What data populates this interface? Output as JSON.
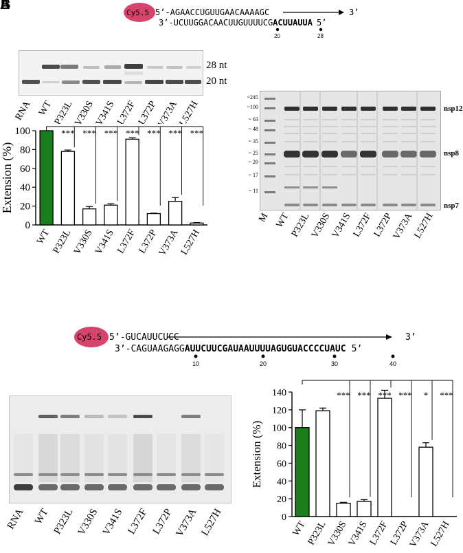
{
  "panel_letters": [
    "A",
    "B"
  ],
  "seq_top": {
    "dye": "Cy5.5",
    "primer": "5’-AGAACCUGUUGAACAAAAGC",
    "primer_end": "3’",
    "template_plain": "3’-UCUUGGACAACUUGUUUUCG",
    "template_bold": "ACUUAUUA",
    "template_end": "5’",
    "markers": [
      "20",
      "28"
    ]
  },
  "seq_bottom": {
    "dye": "Cy5.5",
    "primer": "5’-GUCAUUCUCC",
    "primer_end": "3’",
    "template_plain": "3’-CAGUAAGAGG",
    "template_bold": "AUUCUUCGAUAAUUUUAGUGUACCCCUAUC",
    "template_end": "5’",
    "markers": [
      "10",
      "20",
      "30",
      "40"
    ]
  },
  "gel_top": {
    "lanes": [
      "RNA",
      "WT",
      "P323L",
      "V330S",
      "V341S",
      "L372F",
      "L372P",
      "V373A",
      "L527H"
    ],
    "band_labels": [
      "28 nt",
      "20 nt"
    ]
  },
  "sds_gel": {
    "lanes": [
      "M",
      "WT",
      "P323L",
      "V330S",
      "V341S",
      "L372F",
      "L372P",
      "V373A",
      "L527H"
    ],
    "markers": [
      "~245",
      "~100",
      "~ 63",
      "~ 48",
      "~ 35",
      "~ 25",
      "~ 20",
      "~ 17",
      "~ 11"
    ],
    "protein_labels": [
      "nsp12",
      "nsp8",
      "nsp7"
    ]
  },
  "gel_bottom": {
    "lanes": [
      "RNA",
      "WT",
      "P323L",
      "V330S",
      "V341S",
      "L372F",
      "L372P",
      "V373A",
      "L527H"
    ]
  },
  "chart_data": [
    {
      "type": "bar",
      "categories": [
        "WT",
        "P323L",
        "V330S",
        "V341S",
        "L372F",
        "L372P",
        "V373A",
        "L527H"
      ],
      "values": [
        100,
        78,
        17,
        21,
        91,
        12,
        25,
        2
      ],
      "errors": [
        0,
        1.5,
        2.5,
        1.5,
        1.5,
        0.5,
        4,
        0.5
      ],
      "significance": [
        "",
        "***",
        "***",
        "***",
        "***",
        "***",
        "***",
        "***"
      ],
      "highlight_color": "#1a7f1a",
      "ylabel": "Extension (%)",
      "ylim": [
        0,
        100
      ],
      "yticks": [
        0,
        20,
        40,
        60,
        80,
        100
      ]
    },
    {
      "type": "bar",
      "categories": [
        "WT",
        "P323L",
        "V330S",
        "V341S",
        "L372F",
        "L372P",
        "V373A",
        "L527H"
      ],
      "values": [
        100,
        119,
        15,
        17,
        133,
        0,
        78,
        0
      ],
      "errors": [
        20,
        3,
        1,
        2,
        9,
        0,
        5,
        0
      ],
      "significance": [
        "",
        "",
        "***",
        "***",
        "***",
        "***",
        "*",
        "***"
      ],
      "highlight_color": "#1a7f1a",
      "ylabel": "Extension (%)",
      "ylim": [
        0,
        140
      ],
      "yticks": [
        0,
        20,
        40,
        60,
        80,
        100,
        120,
        140
      ]
    }
  ]
}
